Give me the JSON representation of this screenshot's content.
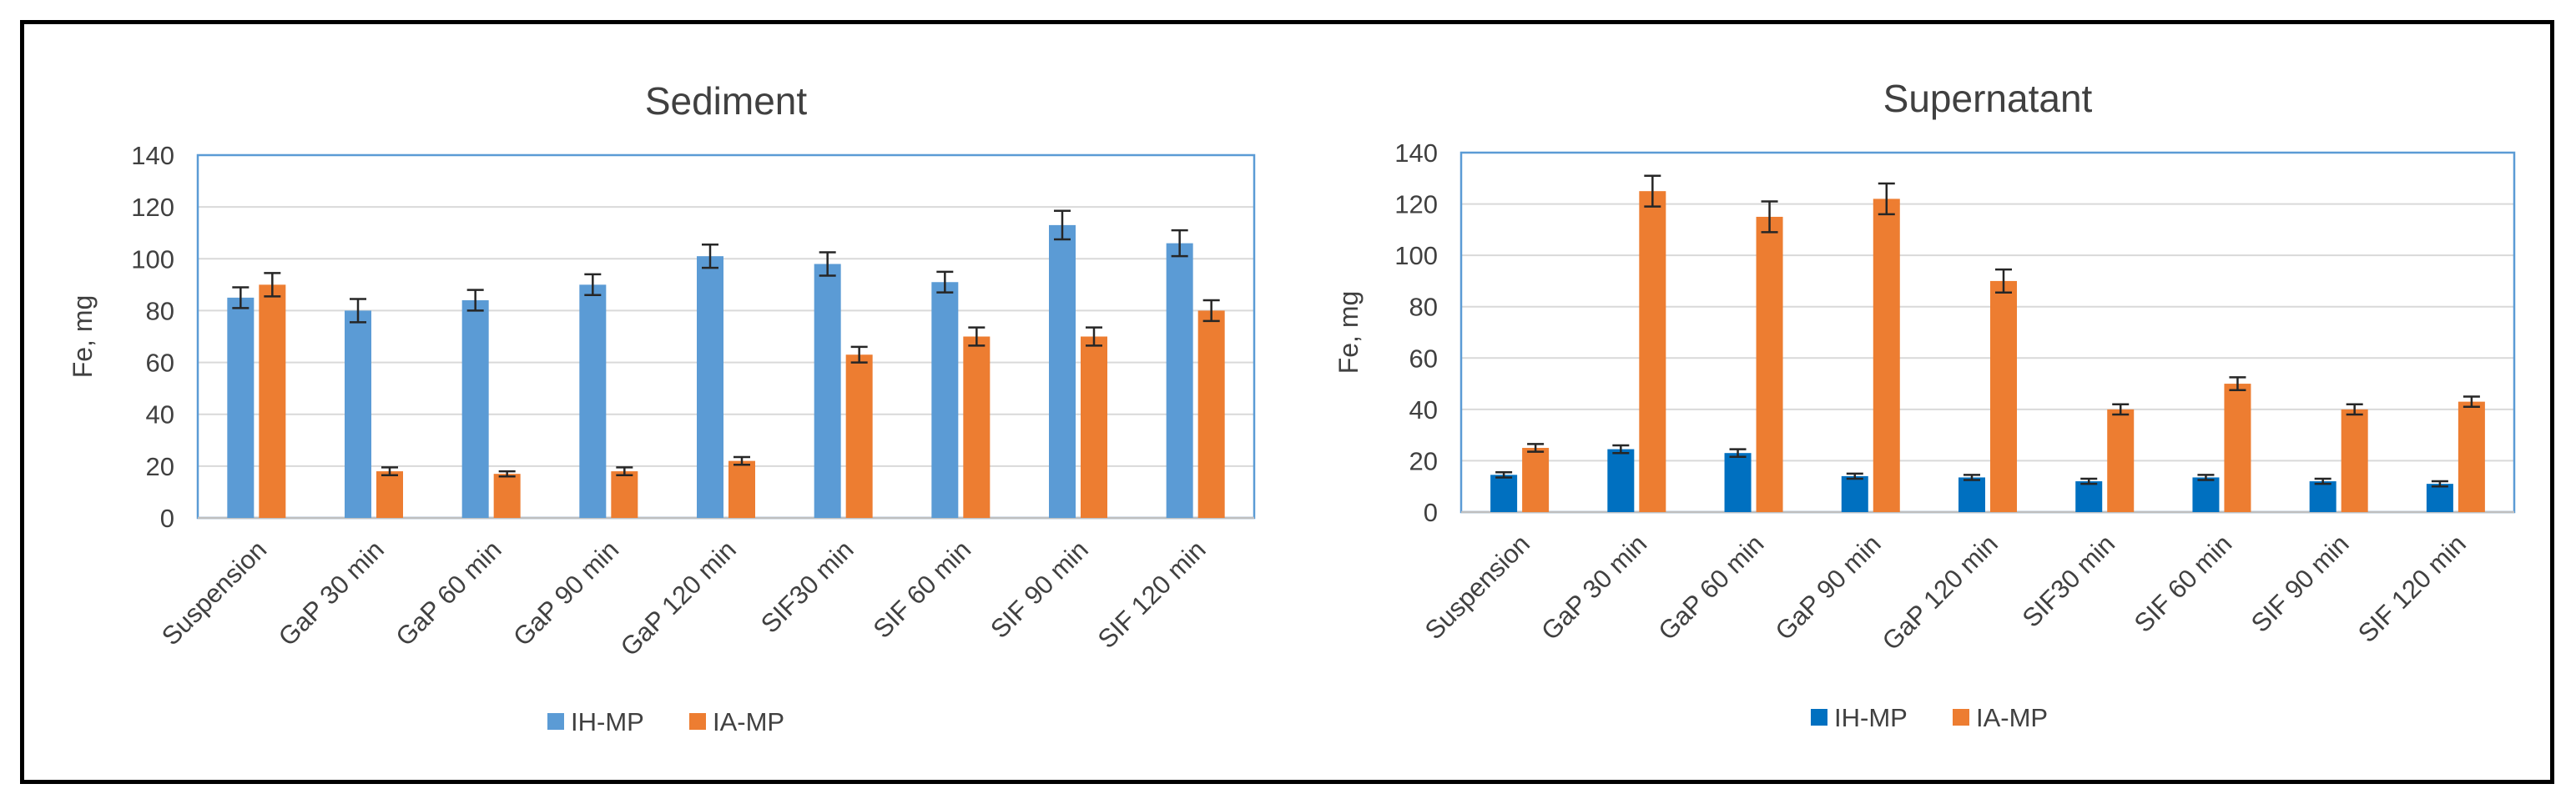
{
  "charts": [
    {
      "type": "bar",
      "title": "Sediment",
      "ylabel": "Fe, mg",
      "xlabel": "",
      "ylim": [
        0,
        140
      ],
      "yticks": [
        0,
        20,
        40,
        60,
        80,
        100,
        120,
        140
      ],
      "grid": true,
      "legend_position": "bottom",
      "categories": [
        "Suspension",
        "GaP 30 min",
        "GaP 60 min",
        "GaP 90 min",
        "GaP 120 min",
        "SIF30 min",
        "SIF 60 min",
        "SIF 90 min",
        "SIF 120 min"
      ],
      "series": [
        {
          "name": "IH-MP",
          "color": "#5b9bd5",
          "values": [
            85,
            80,
            84,
            90,
            101,
            98,
            91,
            113,
            106
          ],
          "errors": [
            4,
            4.5,
            4,
            4,
            4.5,
            4.5,
            4,
            5.5,
            5
          ]
        },
        {
          "name": "IA-MP",
          "color": "#ed7d31",
          "values": [
            90,
            18,
            17,
            18,
            22,
            63,
            70,
            70,
            80
          ],
          "errors": [
            4.5,
            1.5,
            1,
            1.5,
            1.5,
            3,
            3.5,
            3.5,
            4
          ]
        }
      ]
    },
    {
      "type": "bar",
      "title": "Supernatant",
      "ylabel": "Fe, mg",
      "xlabel": "",
      "ylim": [
        0,
        140
      ],
      "yticks": [
        0,
        20,
        40,
        60,
        80,
        100,
        120,
        140
      ],
      "grid": true,
      "legend_position": "bottom",
      "categories": [
        "Suspension",
        "GaP 30 min",
        "GaP 60 min",
        "GaP 90 min",
        "GaP 120 min",
        "SIF30 min",
        "SIF 60 min",
        "SIF 90 min",
        "SIF 120 min"
      ],
      "series": [
        {
          "name": "IH-MP",
          "color": "#0070c0",
          "values": [
            14.5,
            24.5,
            23,
            14,
            13.5,
            12,
            13.5,
            12,
            11
          ],
          "errors": [
            1,
            1.5,
            1.5,
            1,
            1,
            1,
            1,
            1,
            1
          ]
        },
        {
          "name": "IA-MP",
          "color": "#ed7d31",
          "values": [
            25,
            125,
            115,
            122,
            90,
            40,
            50,
            40,
            43
          ],
          "errors": [
            1.5,
            6,
            6,
            6,
            4.5,
            2,
            2.5,
            2,
            2
          ]
        }
      ]
    }
  ]
}
